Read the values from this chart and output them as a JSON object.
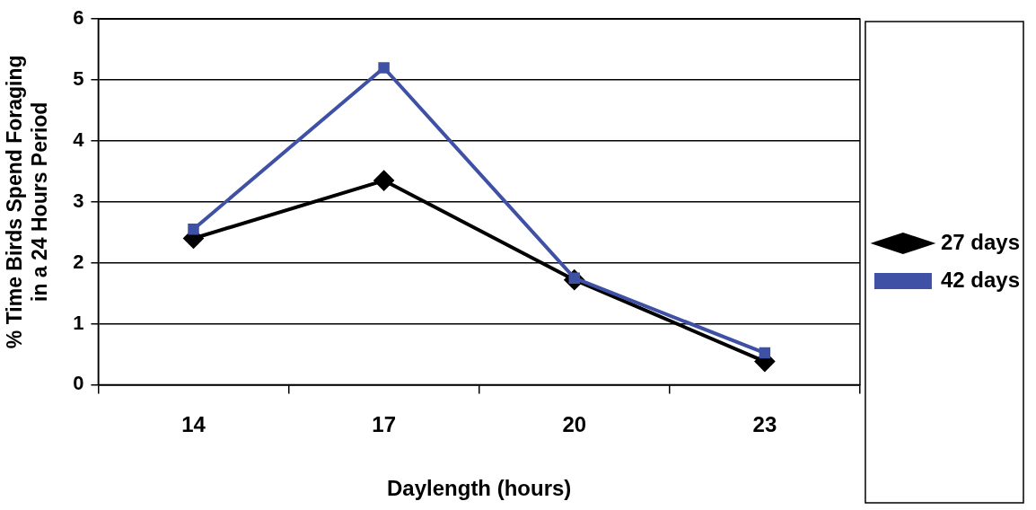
{
  "chart_data": {
    "type": "line",
    "xlabel": "Daylength (hours)",
    "ylabel": "% Time Birds Spend Foraging in a 24 Hours Period",
    "categories": [
      "14",
      "17",
      "20",
      "23"
    ],
    "series": [
      {
        "name": "27 days",
        "color": "#000000",
        "marker": "diamond",
        "values": [
          2.4,
          3.35,
          1.72,
          0.38
        ]
      },
      {
        "name": "42 days",
        "color": "#3f51a5",
        "marker": "square",
        "values": [
          2.55,
          5.2,
          1.75,
          0.52
        ]
      }
    ],
    "ylim": [
      0,
      6
    ],
    "yticks": [
      0,
      1,
      2,
      3,
      4,
      5,
      6
    ],
    "grid": "y",
    "legend": "right",
    "line_style": "solid"
  }
}
